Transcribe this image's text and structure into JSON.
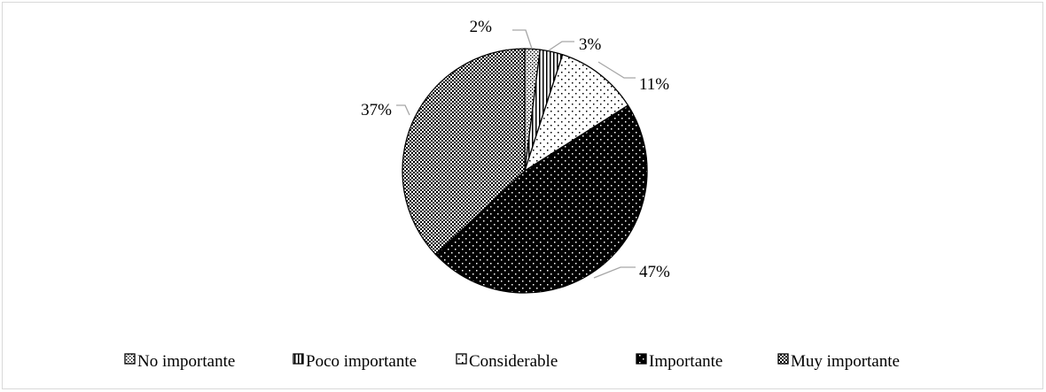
{
  "chart_data": {
    "type": "pie",
    "title": "",
    "categories": [
      "No importante",
      "Poco importante",
      "Considerable",
      "Importante",
      "Muy importante"
    ],
    "values": [
      2,
      3,
      11,
      47,
      37
    ],
    "data_labels": [
      "2%",
      "3%",
      "11%",
      "47%",
      "37%"
    ],
    "legend_position": "bottom",
    "patterns": [
      "dense-dots",
      "vertical-stripes",
      "sparse-dots",
      "dense-dots-black",
      "checker"
    ]
  }
}
